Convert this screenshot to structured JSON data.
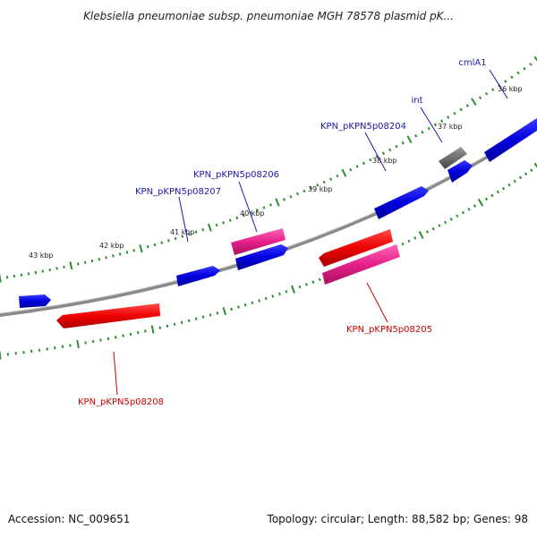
{
  "title": "Klebsiella pneumoniae subsp. pneumoniae MGH 78578 plasmid pK...",
  "footer": {
    "accession": "Accession: NC_009651",
    "summary": "Topology: circular; Length: 88,582 bp; Genes: 98"
  },
  "colors": {
    "backbone": "#8a8a8a",
    "tick": "#2e8b2e",
    "forward_gene": "#0000dd",
    "reverse_gene": "#ee0000",
    "pink_gene": "#e6208a",
    "grey_gene": "#6f6f6f",
    "forward_label": "#1a1aa8",
    "reverse_label": "#cc0000"
  },
  "kbp_labels": [
    "36 kbp",
    "37 kbp",
    "38 kbp",
    "39 kbp",
    "40 kbp",
    "41 kbp",
    "42 kbp",
    "43 kbp"
  ],
  "gene_labels": {
    "cmla1": "cmlA1",
    "int": "int",
    "kpn_08204": "KPN_pKPN5p08204",
    "kpn_08206": "KPN_pKPN5p08206",
    "kpn_08207": "KPN_pKPN5p08207",
    "kpn_08205": "KPN_pKPN5p08205",
    "kpn_08208": "KPN_pKPN5p08208"
  }
}
